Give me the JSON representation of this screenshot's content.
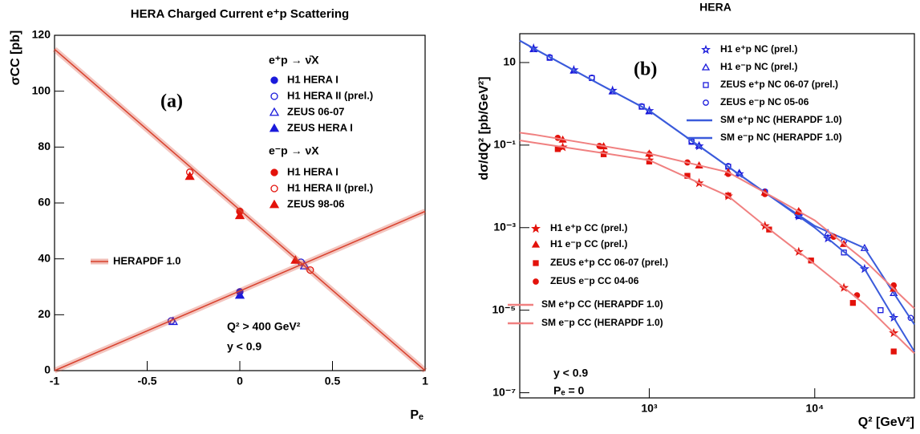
{
  "chart_data": [
    {
      "type": "scatter",
      "title": "HERA Charged Current e⁺p Scattering",
      "x_label": "Pₑ",
      "y_label": "σCC [pb]",
      "xlim": [
        -1,
        1
      ],
      "ylim": [
        0,
        120
      ],
      "xticks": [
        -1,
        -0.5,
        0,
        0.5,
        1
      ],
      "yticks": [
        0,
        20,
        40,
        60,
        80,
        100,
        120
      ],
      "log_x": false,
      "log_y": false,
      "annotations": [
        "(a)",
        "e⁺p → ν̄X",
        "e⁻p → νX",
        "Q² > 400 GeV²",
        "y < 0.9"
      ],
      "series": [
        {
          "name": "H1 HERA I",
          "color": "#1a1adb",
          "marker": "circle",
          "filled": true,
          "x": [
            0
          ],
          "values": [
            28.2
          ]
        },
        {
          "name": "H1 HERA II (prel.)",
          "color": "#1a1adb",
          "marker": "circle",
          "filled": false,
          "x": [
            -0.37,
            0.33
          ],
          "values": [
            17.8,
            38.8
          ]
        },
        {
          "name": "ZEUS 06-07",
          "color": "#1a1adb",
          "marker": "triangle",
          "filled": false,
          "x": [
            -0.36,
            0.35
          ],
          "values": [
            17.6,
            37.5
          ]
        },
        {
          "name": "ZEUS HERA I",
          "color": "#1a1adb",
          "marker": "triangle",
          "filled": true,
          "x": [
            0
          ],
          "values": [
            27
          ]
        },
        {
          "name": "H1 HERA I",
          "color": "#e3120b",
          "marker": "circle",
          "filled": true,
          "x": [
            0
          ],
          "values": [
            57
          ]
        },
        {
          "name": "H1 HERA II (prel.)",
          "color": "#e3120b",
          "marker": "circle",
          "filled": false,
          "x": [
            -0.27,
            0.38
          ],
          "values": [
            71,
            36
          ]
        },
        {
          "name": "ZEUS 98-06",
          "color": "#e3120b",
          "marker": "triangle",
          "filled": true,
          "x": [
            -0.27,
            0,
            0.3
          ],
          "values": [
            69.5,
            55.5,
            39.5
          ]
        },
        {
          "name": "HERAPDF 1.0",
          "color": "#d8402c",
          "marker": "band",
          "x": [
            -1,
            1
          ],
          "values": [
            0,
            57
          ]
        },
        {
          "color": "#d8402c",
          "marker": "band",
          "x": [
            -1,
            1
          ],
          "values": [
            115,
            0
          ]
        }
      ]
    },
    {
      "type": "scatter",
      "title": "HERA",
      "x_label": "Q² [GeV²]",
      "y_label": "dσ/dQ² [pb/GeV²]",
      "xlim": [
        165,
        40000
      ],
      "ylim": [
        7.5e-08,
        50
      ],
      "log_x": true,
      "log_y": true,
      "xticks": [
        {
          "value": 1000,
          "label": "10³"
        },
        {
          "value": 10000,
          "label": "10⁴"
        }
      ],
      "yticks": [
        {
          "value": 1e-07,
          "label": "10⁻⁷"
        },
        {
          "value": 1e-05,
          "label": "10⁻⁵"
        },
        {
          "value": 0.001,
          "label": "10⁻³"
        },
        {
          "value": 0.1,
          "label": "10⁻¹"
        },
        10
      ],
      "annotations": [
        "(b)",
        "y < 0.9",
        "Pₑ = 0"
      ],
      "series": [
        {
          "name": "H1 e⁺p NC (prel.)",
          "color": "#1a1adb",
          "marker": "star",
          "filled": false,
          "x": [
            200,
            350,
            600,
            1000,
            2000,
            3500,
            8000,
            12000,
            20000,
            30000
          ],
          "values": [
            22,
            6.6,
            2.1,
            0.68,
            0.095,
            0.02,
            0.0019,
            0.00055,
            0.0001,
            6.6e-06
          ]
        },
        {
          "name": "H1 e⁻p NC (prel.)",
          "color": "#1a1adb",
          "marker": "triangle",
          "filled": false,
          "x": [
            200,
            350,
            600,
            1000,
            2000,
            3500,
            8000,
            12000,
            20000,
            30000
          ],
          "values": [
            21,
            6.4,
            2.0,
            0.66,
            0.097,
            0.021,
            0.002,
            0.00074,
            0.00032,
            2.6e-05
          ]
        },
        {
          "name": "ZEUS e⁺p NC 06-07 (prel.)",
          "color": "#1a1adb",
          "marker": "square",
          "filled": false,
          "x": [
            250,
            450,
            900,
            1800,
            3000,
            5000,
            8000,
            15000,
            25000
          ],
          "values": [
            13,
            4.2,
            0.85,
            0.12,
            0.03,
            0.0071,
            0.0019,
            0.00025,
            1e-05
          ]
        },
        {
          "name": "ZEUS e⁻p NC 05-06",
          "color": "#1a1adb",
          "marker": "circle",
          "filled": false,
          "x": [
            250,
            450,
            900,
            1800,
            3000,
            5000,
            8000,
            15000,
            38000
          ],
          "values": [
            13.5,
            4.3,
            0.87,
            0.125,
            0.031,
            0.0075,
            0.0021,
            0.00047,
            6.5e-06
          ]
        },
        {
          "name": "SM e⁺p NC (HERAPDF 1.0)",
          "color": "#3b5bdb",
          "marker": "line",
          "x": [
            165,
            200,
            500,
            1000,
            3000,
            5000,
            10000,
            20000,
            30000,
            40000
          ],
          "values": [
            34,
            22,
            3.0,
            0.68,
            0.03,
            0.0071,
            0.001,
            0.0001,
            6.6e-06,
            1e-06
          ]
        },
        {
          "name": "SM e⁻p NC (HERAPDF 1.0)",
          "color": "#3b5bdb",
          "marker": "line",
          "x": [
            165,
            200,
            500,
            1000,
            3000,
            5000,
            10000,
            20000,
            30000,
            40000
          ],
          "values": [
            34,
            22,
            3.0,
            0.68,
            0.03,
            0.0071,
            0.0011,
            0.00032,
            2.6e-05,
            4.5e-06
          ]
        },
        {
          "name": "H1 e⁺p CC (prel.)",
          "color": "#e3120b",
          "marker": "star",
          "filled": true,
          "x": [
            300,
            530,
            1000,
            2000,
            3000,
            5000,
            8000,
            15000,
            30000
          ],
          "values": [
            0.089,
            0.063,
            0.043,
            0.012,
            0.0058,
            0.0011,
            0.00026,
            3.5e-05,
            2.8e-06
          ]
        },
        {
          "name": "H1 e⁻p CC (prel.)",
          "color": "#e3120b",
          "marker": "triangle",
          "filled": true,
          "x": [
            300,
            530,
            1000,
            2000,
            3000,
            5000,
            8000,
            15000,
            30000
          ],
          "values": [
            0.135,
            0.093,
            0.062,
            0.032,
            0.022,
            0.0071,
            0.0025,
            0.0004,
            3.3e-05
          ]
        },
        {
          "name": "ZEUS e⁺p CC 06-07 (prel.)",
          "color": "#e3120b",
          "marker": "square",
          "filled": true,
          "x": [
            280,
            530,
            1000,
            1700,
            3000,
            5300,
            9500,
            17000,
            30000
          ],
          "values": [
            0.08,
            0.06,
            0.04,
            0.018,
            0.006,
            0.0009,
            0.00016,
            1.5e-05,
            1e-06
          ]
        },
        {
          "name": "ZEUS e⁻p CC 04-06",
          "color": "#e3120b",
          "marker": "circle",
          "filled": true,
          "x": [
            280,
            500,
            1000,
            1700,
            3000,
            5000,
            8000,
            13000,
            18000,
            30000
          ],
          "values": [
            0.15,
            0.095,
            0.06,
            0.038,
            0.02,
            0.0065,
            0.0024,
            0.0006,
            2.3e-05,
            4e-05
          ]
        },
        {
          "name": "SM e⁺p CC (HERAPDF 1.0)",
          "color": "#f08080",
          "marker": "line",
          "x": [
            165,
            200,
            500,
            1000,
            3000,
            5000,
            10000,
            20000,
            30000,
            40000
          ],
          "values": [
            0.13,
            0.115,
            0.066,
            0.043,
            0.0058,
            0.0011,
            0.00013,
            1.4e-05,
            2.8e-06,
            9e-07
          ]
        },
        {
          "name": "SM e⁻p CC (HERAPDF 1.0)",
          "color": "#f08080",
          "marker": "line",
          "x": [
            165,
            200,
            500,
            1000,
            3000,
            5000,
            10000,
            20000,
            30000,
            40000
          ],
          "values": [
            0.2,
            0.18,
            0.098,
            0.062,
            0.022,
            0.0071,
            0.0015,
            0.00016,
            3.3e-05,
            1.1e-05
          ]
        }
      ]
    }
  ]
}
